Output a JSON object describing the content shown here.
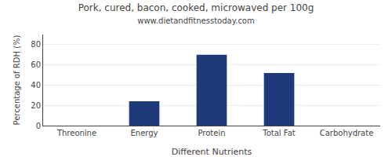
{
  "chart_data": {
    "type": "bar",
    "title": "Pork, cured, bacon, cooked, microwaved per 100g",
    "subtitle": "www.dietandfitnesstoday.com",
    "xlabel": "Different Nutrients",
    "ylabel": "Percentage of RDH (%)",
    "categories": [
      "Threonine",
      "Energy",
      "Protein",
      "Total Fat",
      "Carbohydrate"
    ],
    "values": [
      0,
      24,
      70,
      52,
      0
    ],
    "color": "#1f3a7a",
    "ylim": [
      0,
      90
    ],
    "yticks": [
      0,
      20,
      40,
      60,
      80
    ],
    "grid": true
  }
}
